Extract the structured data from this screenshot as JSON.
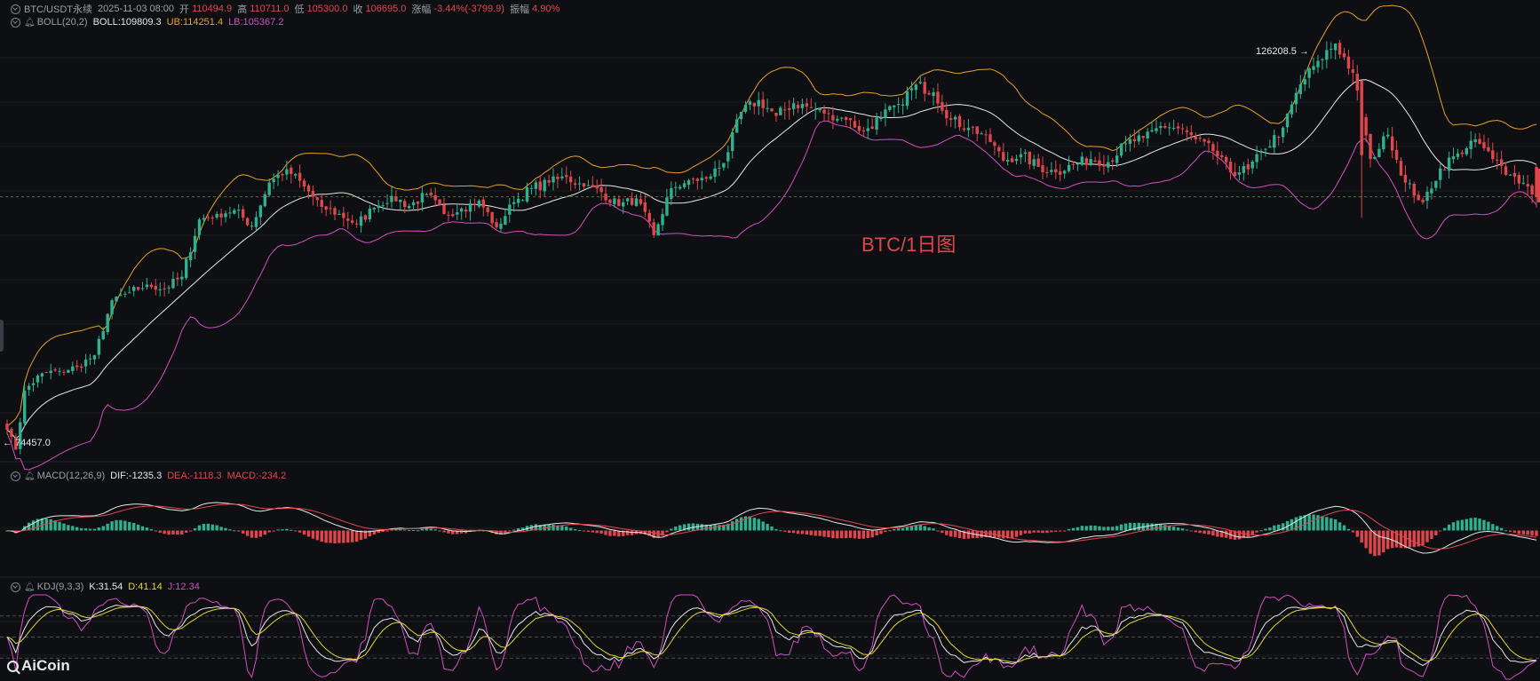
{
  "header": {
    "symbol": "BTC/USDT永续",
    "datetime": "2025-11-03 08:00",
    "open_label": "开",
    "open": "110494.9",
    "high_label": "高",
    "high": "110711.0",
    "low_label": "低",
    "low": "105300.0",
    "close_label": "收",
    "close": "106695.0",
    "change_label": "涨幅",
    "change": "-3.44%(-3799.9)",
    "amplitude_label": "振幅",
    "amplitude": "4.90%"
  },
  "boll_legend": {
    "name": "BOLL(20,2)",
    "mid": "BOLL:109809.3",
    "ub": "UB:114251.4",
    "lb": "LB:105367.2"
  },
  "macd_legend": {
    "name": "MACD(12,26,9)",
    "dif": "DIF:-1235.3",
    "dea": "DEA:-1118.3",
    "macd": "MACD:-234.2"
  },
  "kdj_legend": {
    "name": "KDJ(9,3,3)",
    "k": "K:31.54",
    "d": "D:41.14",
    "j": "J:12.34"
  },
  "watermark": "BTC/1日图",
  "high_marker": "126208.5",
  "low_marker": "74457.0",
  "logo": "AiCoin",
  "colors": {
    "up": "#2fb08f",
    "down": "#e0474c",
    "boll_mid": "#e6e8eb",
    "boll_ub": "#e7a02a",
    "boll_lb": "#d24fbf",
    "dif": "#e6e8eb",
    "dea": "#e0474c",
    "k": "#e6e8eb",
    "d": "#e3d633",
    "j": "#d24fbf"
  },
  "chart_data": {
    "type": "candlestick",
    "interval": "1d",
    "price_range": [
      73500,
      129500
    ],
    "last_close": 106695.0,
    "anchors": [
      [
        0,
        77000
      ],
      [
        2,
        74457
      ],
      [
        4,
        82000
      ],
      [
        8,
        84200
      ],
      [
        12,
        84500
      ],
      [
        16,
        85000
      ],
      [
        20,
        86500
      ],
      [
        24,
        93500
      ],
      [
        28,
        94500
      ],
      [
        32,
        95500
      ],
      [
        36,
        95000
      ],
      [
        40,
        96500
      ],
      [
        44,
        103800
      ],
      [
        48,
        104500
      ],
      [
        52,
        105000
      ],
      [
        56,
        103000
      ],
      [
        60,
        108500
      ],
      [
        64,
        110200
      ],
      [
        68,
        108000
      ],
      [
        72,
        105400
      ],
      [
        76,
        104500
      ],
      [
        80,
        103200
      ],
      [
        84,
        105300
      ],
      [
        88,
        106800
      ],
      [
        92,
        105500
      ],
      [
        96,
        107000
      ],
      [
        100,
        104500
      ],
      [
        104,
        105200
      ],
      [
        108,
        106200
      ],
      [
        112,
        102800
      ],
      [
        116,
        106000
      ],
      [
        120,
        107800
      ],
      [
        124,
        108500
      ],
      [
        128,
        109200
      ],
      [
        132,
        108000
      ],
      [
        136,
        107300
      ],
      [
        140,
        105500
      ],
      [
        144,
        106500
      ],
      [
        148,
        101800
      ],
      [
        152,
        107800
      ],
      [
        156,
        108800
      ],
      [
        160,
        109000
      ],
      [
        164,
        111000
      ],
      [
        168,
        117500
      ],
      [
        172,
        119000
      ],
      [
        176,
        117000
      ],
      [
        180,
        118600
      ],
      [
        184,
        118000
      ],
      [
        188,
        117300
      ],
      [
        192,
        116500
      ],
      [
        196,
        115100
      ],
      [
        200,
        116800
      ],
      [
        204,
        118500
      ],
      [
        208,
        121000
      ],
      [
        212,
        120000
      ],
      [
        216,
        116500
      ],
      [
        220,
        115500
      ],
      [
        224,
        114600
      ],
      [
        228,
        111300
      ],
      [
        232,
        112100
      ],
      [
        236,
        110500
      ],
      [
        240,
        109800
      ],
      [
        244,
        110800
      ],
      [
        248,
        111500
      ],
      [
        252,
        111100
      ],
      [
        256,
        113500
      ],
      [
        260,
        114200
      ],
      [
        264,
        115700
      ],
      [
        268,
        115400
      ],
      [
        272,
        114000
      ],
      [
        276,
        112500
      ],
      [
        280,
        109800
      ],
      [
        284,
        110200
      ],
      [
        288,
        112800
      ],
      [
        292,
        115500
      ],
      [
        296,
        121000
      ],
      [
        300,
        124000
      ],
      [
        304,
        126208
      ],
      [
        308,
        122500
      ],
      [
        310,
        117000
      ],
      [
        312,
        111500
      ],
      [
        316,
        114600
      ],
      [
        320,
        108500
      ],
      [
        324,
        106000
      ],
      [
        328,
        110300
      ],
      [
        332,
        112200
      ],
      [
        336,
        114000
      ],
      [
        340,
        111500
      ],
      [
        344,
        109500
      ],
      [
        348,
        108000
      ],
      [
        350,
        106695
      ]
    ],
    "macd_range": [
      -6500,
      6500
    ],
    "kdj_range": [
      -10,
      110
    ],
    "kdj_levels": [
      80,
      50,
      20
    ]
  }
}
